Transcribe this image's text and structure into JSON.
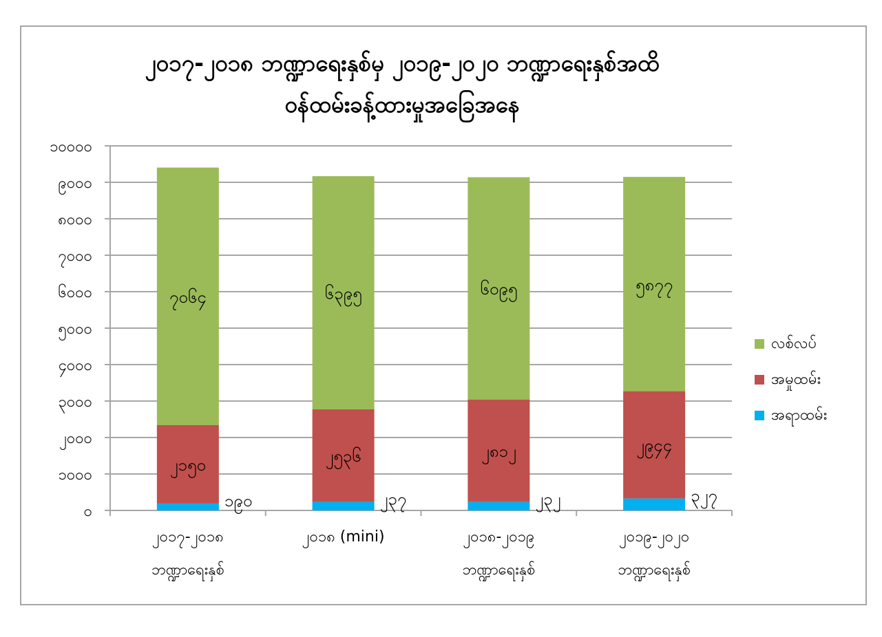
{
  "chart_data": {
    "type": "bar",
    "stacked": true,
    "title": [
      "၂၀၁၇-၂၀၁၈ ဘဏ္ဍာရေးနှစ်မှ ၂၀၁၉-၂၀၂၀ ဘဏ္ဍာရေးနှစ်အထိ",
      "ဝန်ထမ်းခန့်ထားမှုအခြေအနေ"
    ],
    "categories": [
      [
        "၂၀၁၇-၂၀၁၈",
        "ဘဏ္ဍာရေးနှစ်"
      ],
      [
        "၂၀၁၈  (mini)"
      ],
      [
        "၂၀၁၈-၂၀၁၉",
        "ဘဏ္ဍာရေးနှစ်"
      ],
      [
        "၂၀၁၉-၂၀၂၀",
        "ဘဏ္ဍာရေးနှစ်"
      ]
    ],
    "series": [
      {
        "name": "အရာထမ်း",
        "color": "#00b0f0",
        "values": [
          190,
          237,
          232,
          327
        ],
        "labels": [
          "၁၉၀",
          "၂၃၇",
          "၂၃၂",
          "၃၂၇"
        ]
      },
      {
        "name": "အမှုထမ်း",
        "color": "#c0504d",
        "values": [
          2150,
          2536,
          2812,
          2944
        ],
        "labels": [
          "၂၁၅၀",
          "၂၅၃၆",
          "၂၈၁၂",
          "၂၉၄၄"
        ]
      },
      {
        "name": "လစ်လပ်",
        "color": "#9bbb59",
        "values": [
          7064,
          6395,
          6095,
          5877
        ],
        "labels": [
          "၇၀၆၄",
          "၆၃၉၅",
          "၆၀၉၅",
          "၅၈၇၇"
        ]
      }
    ],
    "ylim": [
      0,
      10000
    ],
    "yticks": [
      0,
      1000,
      2000,
      3000,
      4000,
      5000,
      6000,
      7000,
      8000,
      9000,
      10000
    ],
    "ytick_labels": [
      "၀",
      "၁၀၀၀",
      "၂၀၀၀",
      "၃၀၀၀",
      "၄၀၀၀",
      "၅၀၀၀",
      "၆၀၀၀",
      "၇၀၀၀",
      "၈၀၀၀",
      "၉၀၀၀",
      "၁၀၀၀၀"
    ],
    "grid": true,
    "legend": "right",
    "colors": {
      "grid": "#a6a6a6",
      "axis": "#a6a6a6"
    }
  }
}
